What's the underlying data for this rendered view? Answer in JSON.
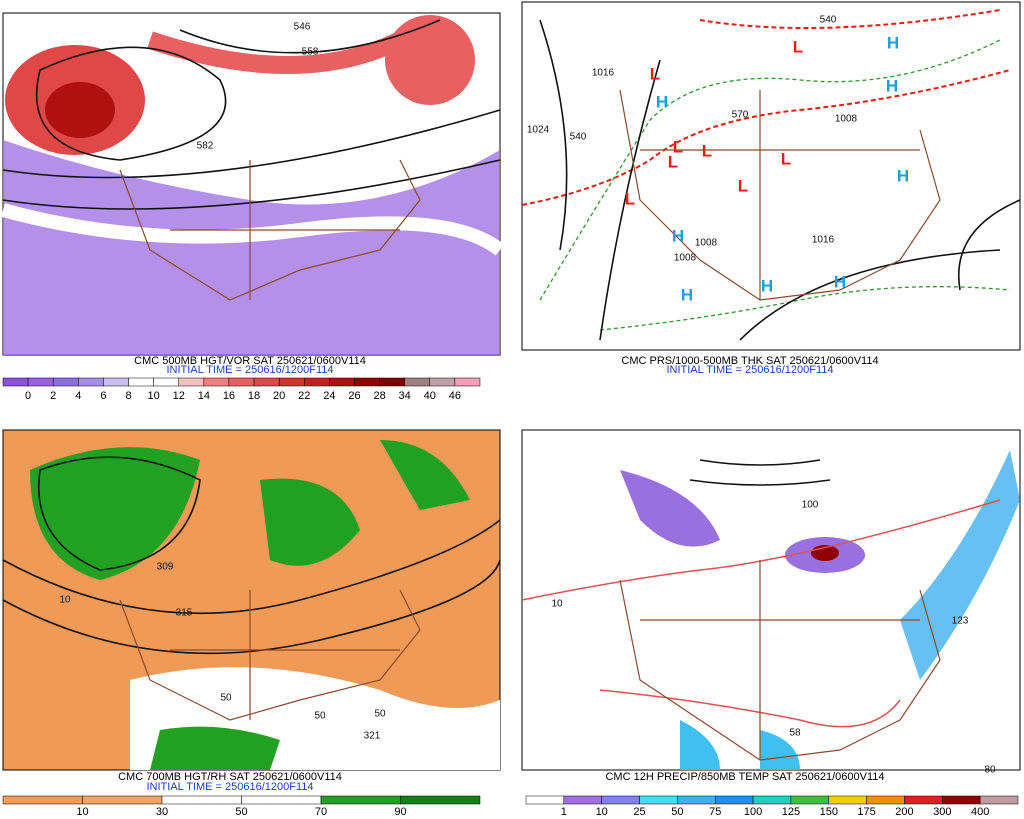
{
  "panels": [
    {
      "caption": "CMC 500MB HGT/VOR SAT 250621/0600V114",
      "initial_time": "INITIAL TIME = 250616/1200F114",
      "colorbar": {
        "labels": [
          0,
          2,
          4,
          6,
          8,
          10,
          12,
          14,
          16,
          18,
          20,
          22,
          24,
          26,
          28,
          34,
          40,
          46
        ],
        "colors": [
          "#8f4fe0",
          "#9c5fe6",
          "#8a6fe0",
          "#a58ee8",
          "#c8bff0",
          "#ffffff",
          "#ffffff",
          "#f3c0c0",
          "#f08080",
          "#e86060",
          "#e04848",
          "#d83030",
          "#c82020",
          "#b01010",
          "#900000",
          "#7a0000",
          "#a08080",
          "#c0a0a8",
          "#f0a0b8"
        ]
      },
      "map_labels": [
        "546",
        "558",
        "582"
      ]
    },
    {
      "caption": "CMC PRS/1000-500MB THK SAT 250621/0600V114",
      "initial_time": "INITIAL TIME = 250616/1200F114",
      "map_labels": [
        "540",
        "1016",
        "570",
        "1024",
        "540",
        "1008",
        "1008",
        "1016",
        "1008"
      ],
      "highs": [
        "H",
        "H",
        "H",
        "H",
        "H",
        "H",
        "H",
        "H"
      ],
      "lows": [
        "L",
        "L",
        "L",
        "L",
        "L",
        "L",
        "L",
        "L"
      ]
    },
    {
      "caption": "CMC 700MB HGT/RH SAT 250621/0600V114",
      "initial_time": "INITIAL TIME = 250616/1200F114",
      "colorbar": {
        "labels": [
          10,
          30,
          50,
          70,
          90
        ],
        "colors": [
          "#f09a58",
          "#f2a466",
          "#ffffff",
          "#ffffff",
          "#22a022",
          "#128012"
        ]
      },
      "map_labels": [
        "309",
        "315",
        "50",
        "50",
        "50",
        "321",
        "10"
      ]
    },
    {
      "caption": "CMC 12H PRECIP/850MB TEMP SAT 250621/0600V114",
      "colorbar": {
        "labels": [
          1,
          10,
          25,
          50,
          75,
          100,
          125,
          150,
          175,
          200,
          300,
          400
        ],
        "colors": [
          "#ffffff",
          "#a070e0",
          "#8080f0",
          "#40e0f0",
          "#40b0f0",
          "#2090f0",
          "#20d0c0",
          "#40c040",
          "#f0d000",
          "#f09000",
          "#e02020",
          "#900000",
          "#c09aa0"
        ]
      },
      "map_labels": [
        "100",
        "123",
        "10",
        "58",
        "80"
      ]
    }
  ]
}
